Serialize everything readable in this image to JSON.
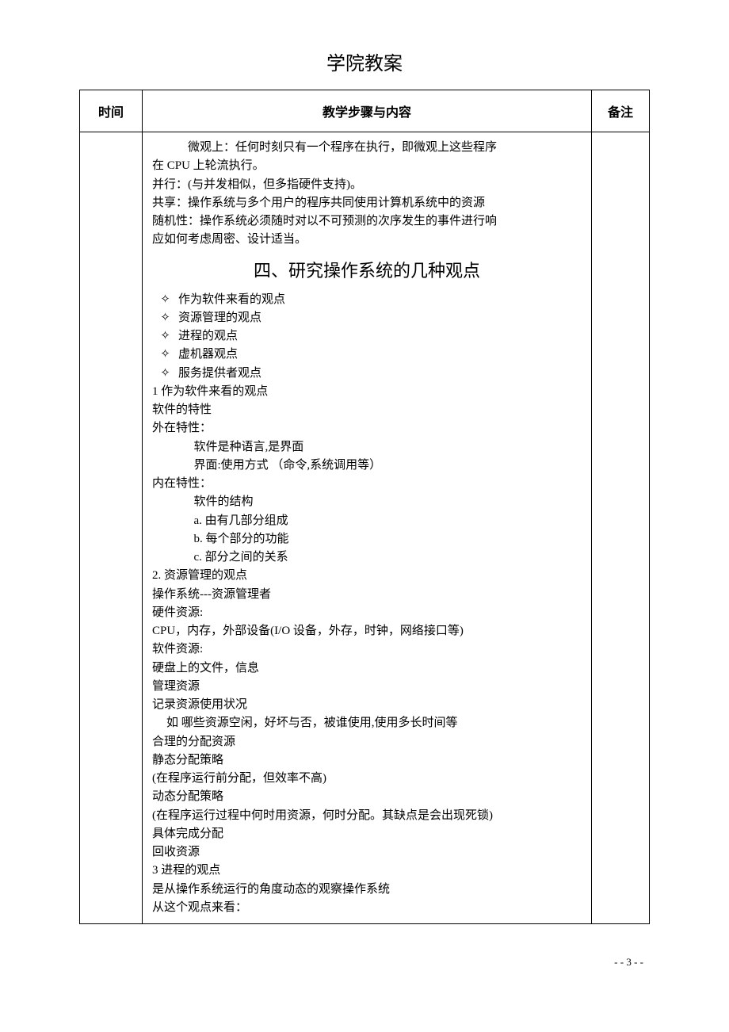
{
  "doc_title": "学院教案",
  "table": {
    "headers": {
      "time": "时间",
      "content": "教学步骤与内容",
      "note": "备注"
    }
  },
  "colors": {
    "text": "#000000",
    "background": "#ffffff",
    "border": "#000000"
  },
  "fonts": {
    "body_family": "SimSun",
    "body_size_pt": 11,
    "title_size_pt": 18,
    "heading_size_pt": 16,
    "header_size_pt": 12
  },
  "intro_lines": [
    {
      "text": "微观上：任何时刻只有一个程序在执行，即微观上这些程序",
      "indent": true
    },
    {
      "text": "在 CPU 上轮流执行。",
      "indent": false
    },
    {
      "text": "并行：(与并发相似，但多指硬件支持)。",
      "indent": false
    },
    {
      "text": "共享：操作系统与多个用户的程序共同使用计算机系统中的资源",
      "indent": false
    },
    {
      "text": "随机性：操作系统必须随时对以不可预测的次序发生的事件进行响",
      "indent": false
    },
    {
      "text": "应如何考虑周密、设计适当。",
      "indent": false
    }
  ],
  "section_heading": "四、研究操作系统的几种观点",
  "bullet_symbol": "✧",
  "bullets": [
    "作为软件来看的观点",
    "资源管理的观点",
    "进程的观点",
    "虚机器观点",
    "服务提供者观点"
  ],
  "body_lines": [
    {
      "text": "1 作为软件来看的观点",
      "indent": 0
    },
    {
      "text": "软件的特性",
      "indent": 0
    },
    {
      "text": "外在特性：",
      "indent": 0
    },
    {
      "text": "软件是种语言,是界面",
      "indent": 1
    },
    {
      "text": "界面:使用方式 （命令,系统调用等）",
      "indent": 1
    },
    {
      "text": "内在特性：",
      "indent": 0
    },
    {
      "text": "软件的结构",
      "indent": 1
    },
    {
      "text": "a. 由有几部分组成",
      "indent": 1
    },
    {
      "text": "b. 每个部分的功能",
      "indent": 1
    },
    {
      "text": "c. 部分之间的关系",
      "indent": 1
    },
    {
      "text": "2. 资源管理的观点",
      "indent": 0
    },
    {
      "text": "操作系统---资源管理者",
      "indent": 0
    },
    {
      "text": "硬件资源:",
      "indent": 0
    },
    {
      "text": "CPU，内存，外部设备(I/O 设备，外存，时钟，网络接口等)",
      "indent": 0
    },
    {
      "text": "软件资源:",
      "indent": 0
    },
    {
      "text": "硬盘上的文件，信息",
      "indent": 0
    },
    {
      "text": "管理资源",
      "indent": 0
    },
    {
      "text": "记录资源使用状况",
      "indent": 0
    },
    {
      "text": "如 哪些资源空闲，好坏与否，被谁使用,使用多长时间等",
      "indent": 2
    },
    {
      "text": "合理的分配资源",
      "indent": 0
    },
    {
      "text": "静态分配策略",
      "indent": 0
    },
    {
      "text": "(在程序运行前分配，但效率不高)",
      "indent": 0
    },
    {
      "text": "动态分配策略",
      "indent": 0
    },
    {
      "text": "(在程序运行过程中何时用资源，何时分配。其缺点是会出现死锁)",
      "indent": 0
    },
    {
      "text": "具体完成分配",
      "indent": 0
    },
    {
      "text": "回收资源",
      "indent": 0
    },
    {
      "text": "3  进程的观点",
      "indent": 0
    },
    {
      "text": "是从操作系统运行的角度动态的观察操作系统",
      "indent": 0
    },
    {
      "text": "从这个观点来看：",
      "indent": 0
    }
  ],
  "page_number": "- - 3 - -"
}
